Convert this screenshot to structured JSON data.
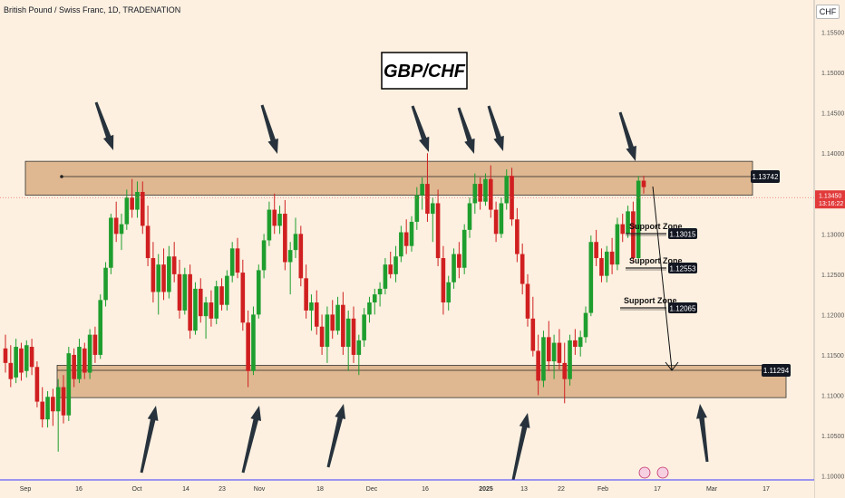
{
  "header": {
    "symbol_line": "British Pound / Swiss Franc, 1D, TRADENATION",
    "currency_button": "CHF"
  },
  "colors": {
    "background": "#fdf0e0",
    "zone_fill": "#dfb891",
    "bull": "#1e9e2e",
    "bear": "#d01f20",
    "text": "#131722",
    "scale_text": "#555555",
    "axis_line": "#3a3aff",
    "price_line": "#f06a6a"
  },
  "chart_data": {
    "type": "candlestick",
    "title": "GBP/CHF",
    "pair_full": "British Pound / Swiss Franc",
    "timeframe": "1D",
    "broker": "TRADENATION",
    "y_axis_ticks": [
      "1.15500",
      "1.15000",
      "1.14500",
      "1.14000",
      "1.13500",
      "1.13000",
      "1.12500",
      "1.12000",
      "1.11500",
      "1.11000",
      "1.10500",
      "1.10000"
    ],
    "ylim": [
      1.0995,
      1.159
    ],
    "x_axis_labels": [
      "Sep",
      "16",
      "Oct",
      "14",
      "23",
      "Nov",
      "18",
      "Dec",
      "16",
      "2025",
      "13",
      "22",
      "Feb",
      "17",
      "Mar",
      "17"
    ],
    "current_price": {
      "value": "1.13450",
      "countdown": "13:16:22"
    },
    "resistance_zone": {
      "top": 1.139,
      "bottom": 1.1348,
      "level_label": "1.13742"
    },
    "support_zone": {
      "top": 1.1137,
      "bottom": 1.1097,
      "level_label": "1.11294"
    },
    "support_levels": [
      {
        "label": "Support Zone",
        "value": "1.13015"
      },
      {
        "label": "Support Zone",
        "value": "1.12553"
      },
      {
        "label": "Support Zone",
        "value": "1.12065"
      }
    ],
    "legend": "none",
    "grid": false,
    "candles": [
      [
        1.1158,
        1.1175,
        1.1128,
        1.114
      ],
      [
        1.114,
        1.1162,
        1.111,
        1.112
      ],
      [
        1.1122,
        1.117,
        1.1115,
        1.116
      ],
      [
        1.1158,
        1.1165,
        1.1118,
        1.1128
      ],
      [
        1.113,
        1.1168,
        1.1122,
        1.1162
      ],
      [
        1.116,
        1.117,
        1.1125,
        1.1135
      ],
      [
        1.1135,
        1.1142,
        1.1085,
        1.1092
      ],
      [
        1.1092,
        1.111,
        1.106,
        1.107
      ],
      [
        1.107,
        1.1105,
        1.106,
        1.1098
      ],
      [
        1.1098,
        1.1108,
        1.1062,
        1.108
      ],
      [
        1.108,
        1.112,
        1.103,
        1.111
      ],
      [
        1.111,
        1.1125,
        1.1065,
        1.1075
      ],
      [
        1.1075,
        1.116,
        1.1068,
        1.1152
      ],
      [
        1.115,
        1.1158,
        1.111,
        1.112
      ],
      [
        1.112,
        1.117,
        1.1115,
        1.116
      ],
      [
        1.1158,
        1.1165,
        1.112,
        1.1128
      ],
      [
        1.1128,
        1.1182,
        1.112,
        1.1175
      ],
      [
        1.1175,
        1.1185,
        1.114,
        1.115
      ],
      [
        1.115,
        1.1225,
        1.1145,
        1.1218
      ],
      [
        1.1218,
        1.1265,
        1.121,
        1.1258
      ],
      [
        1.1258,
        1.1325,
        1.125,
        1.132
      ],
      [
        1.132,
        1.134,
        1.129,
        1.13
      ],
      [
        1.13,
        1.1325,
        1.128,
        1.1312
      ],
      [
        1.1312,
        1.1355,
        1.1305,
        1.1345
      ],
      [
        1.1345,
        1.1368,
        1.132,
        1.133
      ],
      [
        1.133,
        1.1365,
        1.132,
        1.1352
      ],
      [
        1.1352,
        1.1365,
        1.13,
        1.131
      ],
      [
        1.131,
        1.1335,
        1.126,
        1.127
      ],
      [
        1.127,
        1.129,
        1.1215,
        1.1228
      ],
      [
        1.1228,
        1.1275,
        1.12,
        1.1262
      ],
      [
        1.1262,
        1.1282,
        1.1218,
        1.1228
      ],
      [
        1.1228,
        1.1285,
        1.122,
        1.1272
      ],
      [
        1.1272,
        1.129,
        1.124,
        1.125
      ],
      [
        1.125,
        1.1268,
        1.1195,
        1.1205
      ],
      [
        1.1205,
        1.1258,
        1.12,
        1.125
      ],
      [
        1.125,
        1.1262,
        1.117,
        1.118
      ],
      [
        1.118,
        1.124,
        1.1175,
        1.1232
      ],
      [
        1.1232,
        1.1245,
        1.119,
        1.1198
      ],
      [
        1.1198,
        1.1222,
        1.117,
        1.1215
      ],
      [
        1.1215,
        1.123,
        1.1185,
        1.1195
      ],
      [
        1.1195,
        1.1242,
        1.1188,
        1.1235
      ],
      [
        1.1235,
        1.1245,
        1.1205,
        1.1212
      ],
      [
        1.1212,
        1.1255,
        1.1205,
        1.1248
      ],
      [
        1.1248,
        1.129,
        1.124,
        1.1282
      ],
      [
        1.1282,
        1.1295,
        1.1245,
        1.1252
      ],
      [
        1.1252,
        1.1268,
        1.118,
        1.119
      ],
      [
        1.119,
        1.1205,
        1.111,
        1.113
      ],
      [
        1.113,
        1.121,
        1.1125,
        1.12
      ],
      [
        1.12,
        1.1262,
        1.1195,
        1.1255
      ],
      [
        1.1255,
        1.13,
        1.1245,
        1.1292
      ],
      [
        1.1292,
        1.134,
        1.1285,
        1.133
      ],
      [
        1.133,
        1.135,
        1.13,
        1.131
      ],
      [
        1.131,
        1.1335,
        1.13,
        1.1325
      ],
      [
        1.1325,
        1.1342,
        1.1255,
        1.1265
      ],
      [
        1.1265,
        1.129,
        1.1225,
        1.128
      ],
      [
        1.128,
        1.132,
        1.127,
        1.13
      ],
      [
        1.13,
        1.131,
        1.1235,
        1.1245
      ],
      [
        1.1245,
        1.1262,
        1.1195,
        1.1205
      ],
      [
        1.1205,
        1.1225,
        1.118,
        1.1215
      ],
      [
        1.1215,
        1.123,
        1.1175,
        1.1185
      ],
      [
        1.1185,
        1.12,
        1.115,
        1.116
      ],
      [
        1.116,
        1.121,
        1.114,
        1.12
      ],
      [
        1.12,
        1.1218,
        1.117,
        1.118
      ],
      [
        1.118,
        1.1222,
        1.1175,
        1.1212
      ],
      [
        1.1212,
        1.1228,
        1.115,
        1.116
      ],
      [
        1.116,
        1.1205,
        1.113,
        1.1195
      ],
      [
        1.1195,
        1.121,
        1.114,
        1.115
      ],
      [
        1.115,
        1.1175,
        1.1125,
        1.1168
      ],
      [
        1.1168,
        1.1208,
        1.116,
        1.12
      ],
      [
        1.12,
        1.1222,
        1.119,
        1.1215
      ],
      [
        1.1215,
        1.1232,
        1.12,
        1.1225
      ],
      [
        1.1225,
        1.124,
        1.121,
        1.1232
      ],
      [
        1.1232,
        1.127,
        1.1225,
        1.1262
      ],
      [
        1.1262,
        1.1278,
        1.1245,
        1.125
      ],
      [
        1.125,
        1.1285,
        1.124,
        1.1272
      ],
      [
        1.1272,
        1.131,
        1.1265,
        1.1302
      ],
      [
        1.1302,
        1.1318,
        1.1275,
        1.1285
      ],
      [
        1.1285,
        1.1322,
        1.1278,
        1.1315
      ],
      [
        1.1315,
        1.1358,
        1.1305,
        1.1348
      ],
      [
        1.1348,
        1.137,
        1.133,
        1.1362
      ],
      [
        1.1362,
        1.14,
        1.1315,
        1.1325
      ],
      [
        1.1325,
        1.1345,
        1.129,
        1.1338
      ],
      [
        1.1338,
        1.1355,
        1.126,
        1.127
      ],
      [
        1.127,
        1.1285,
        1.12,
        1.1215
      ],
      [
        1.1215,
        1.1248,
        1.1205,
        1.124
      ],
      [
        1.124,
        1.1282,
        1.1232,
        1.1275
      ],
      [
        1.1275,
        1.129,
        1.1245,
        1.1258
      ],
      [
        1.1258,
        1.1312,
        1.125,
        1.1305
      ],
      [
        1.1305,
        1.1345,
        1.1295,
        1.1338
      ],
      [
        1.1338,
        1.1375,
        1.1325,
        1.1362
      ],
      [
        1.1362,
        1.137,
        1.133,
        1.134
      ],
      [
        1.134,
        1.1375,
        1.1335,
        1.1368
      ],
      [
        1.1368,
        1.1385,
        1.132,
        1.133
      ],
      [
        1.133,
        1.134,
        1.129,
        1.13
      ],
      [
        1.13,
        1.1345,
        1.1295,
        1.1338
      ],
      [
        1.1338,
        1.138,
        1.133,
        1.1372
      ],
      [
        1.1372,
        1.1382,
        1.131,
        1.1318
      ],
      [
        1.1318,
        1.1332,
        1.1265,
        1.1275
      ],
      [
        1.1275,
        1.1288,
        1.1225,
        1.1238
      ],
      [
        1.1238,
        1.125,
        1.1185,
        1.1195
      ],
      [
        1.1195,
        1.1222,
        1.1148,
        1.1155
      ],
      [
        1.1155,
        1.1175,
        1.11,
        1.1118
      ],
      [
        1.1118,
        1.118,
        1.111,
        1.1172
      ],
      [
        1.1172,
        1.1192,
        1.113,
        1.1142
      ],
      [
        1.1142,
        1.1175,
        1.112,
        1.1165
      ],
      [
        1.1165,
        1.1182,
        1.1132,
        1.114
      ],
      [
        1.114,
        1.1165,
        1.109,
        1.112
      ],
      [
        1.112,
        1.1175,
        1.1112,
        1.1168
      ],
      [
        1.1168,
        1.1182,
        1.115,
        1.116
      ],
      [
        1.116,
        1.118,
        1.1148,
        1.1172
      ],
      [
        1.1172,
        1.121,
        1.1165,
        1.1202
      ],
      [
        1.1202,
        1.1298,
        1.1198,
        1.129
      ],
      [
        1.129,
        1.1305,
        1.126,
        1.127
      ],
      [
        1.127,
        1.1282,
        1.124,
        1.1248
      ],
      [
        1.1248,
        1.1285,
        1.124,
        1.1278
      ],
      [
        1.1278,
        1.1295,
        1.125,
        1.1262
      ],
      [
        1.1262,
        1.132,
        1.1255,
        1.1312
      ],
      [
        1.1312,
        1.1325,
        1.129,
        1.13
      ],
      [
        1.13,
        1.1335,
        1.1295,
        1.1328
      ],
      [
        1.1328,
        1.134,
        1.1265,
        1.127
      ],
      [
        1.127,
        1.1372,
        1.1265,
        1.1366
      ],
      [
        1.1366,
        1.1372,
        1.135,
        1.1358
      ]
    ]
  }
}
